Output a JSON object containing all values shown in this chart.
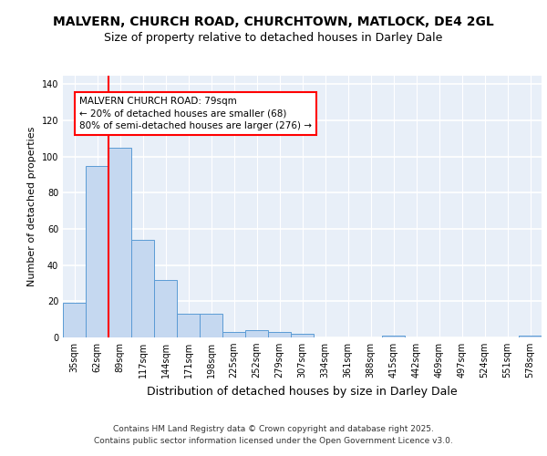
{
  "title1": "MALVERN, CHURCH ROAD, CHURCHTOWN, MATLOCK, DE4 2GL",
  "title2": "Size of property relative to detached houses in Darley Dale",
  "xlabel": "Distribution of detached houses by size in Darley Dale",
  "ylabel": "Number of detached properties",
  "bins": [
    "35sqm",
    "62sqm",
    "89sqm",
    "117sqm",
    "144sqm",
    "171sqm",
    "198sqm",
    "225sqm",
    "252sqm",
    "279sqm",
    "307sqm",
    "334sqm",
    "361sqm",
    "388sqm",
    "415sqm",
    "442sqm",
    "469sqm",
    "497sqm",
    "524sqm",
    "551sqm",
    "578sqm"
  ],
  "values": [
    19,
    95,
    105,
    54,
    32,
    13,
    13,
    3,
    4,
    3,
    2,
    0,
    0,
    0,
    1,
    0,
    0,
    0,
    0,
    0,
    1
  ],
  "bar_color": "#c5d8f0",
  "bar_edge_color": "#5b9bd5",
  "vline_color": "red",
  "vline_x": 1.63,
  "annotation_text": "MALVERN CHURCH ROAD: 79sqm\n← 20% of detached houses are smaller (68)\n80% of semi-detached houses are larger (276) →",
  "annotation_box_color": "white",
  "annotation_box_edge": "red",
  "ylim": [
    0,
    145
  ],
  "yticks": [
    0,
    20,
    40,
    60,
    80,
    100,
    120,
    140
  ],
  "background_color": "#e8eff8",
  "grid_color": "white",
  "footer": "Contains HM Land Registry data © Crown copyright and database right 2025.\nContains public sector information licensed under the Open Government Licence v3.0.",
  "title1_fontsize": 10,
  "title2_fontsize": 9,
  "xlabel_fontsize": 9,
  "ylabel_fontsize": 8,
  "tick_fontsize": 7,
  "annotation_fontsize": 7.5,
  "footer_fontsize": 6.5
}
